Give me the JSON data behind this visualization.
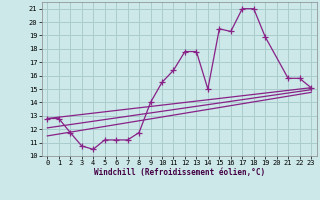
{
  "background_color": "#cce8e8",
  "grid_color": "#aacccc",
  "line_color": "#882288",
  "xlabel": "Windchill (Refroidissement éolien,°C)",
  "xlim": [
    -0.5,
    23.5
  ],
  "ylim": [
    10,
    21.5
  ],
  "yticks": [
    10,
    11,
    12,
    13,
    14,
    15,
    16,
    17,
    18,
    19,
    20,
    21
  ],
  "xticks": [
    0,
    1,
    2,
    3,
    4,
    5,
    6,
    7,
    8,
    9,
    10,
    11,
    12,
    13,
    14,
    15,
    16,
    17,
    18,
    19,
    20,
    21,
    22,
    23
  ],
  "main_x": [
    0,
    1,
    2,
    3,
    4,
    5,
    6,
    7,
    8,
    9,
    10,
    11,
    12,
    13,
    14,
    15,
    16,
    17,
    18,
    19,
    21,
    22,
    23
  ],
  "main_y": [
    12.8,
    12.8,
    11.75,
    10.75,
    10.5,
    11.2,
    11.2,
    11.2,
    11.75,
    14.0,
    15.5,
    16.4,
    17.8,
    17.8,
    15.0,
    19.5,
    19.3,
    21.0,
    21.0,
    18.9,
    15.8,
    15.8,
    15.1
  ],
  "upper_line_x": [
    0,
    23
  ],
  "upper_line_y": [
    12.8,
    15.1
  ],
  "mid_line_x": [
    0,
    23
  ],
  "mid_line_y": [
    12.1,
    14.95
  ],
  "lower_line_x": [
    0,
    23
  ],
  "lower_line_y": [
    11.5,
    14.75
  ]
}
